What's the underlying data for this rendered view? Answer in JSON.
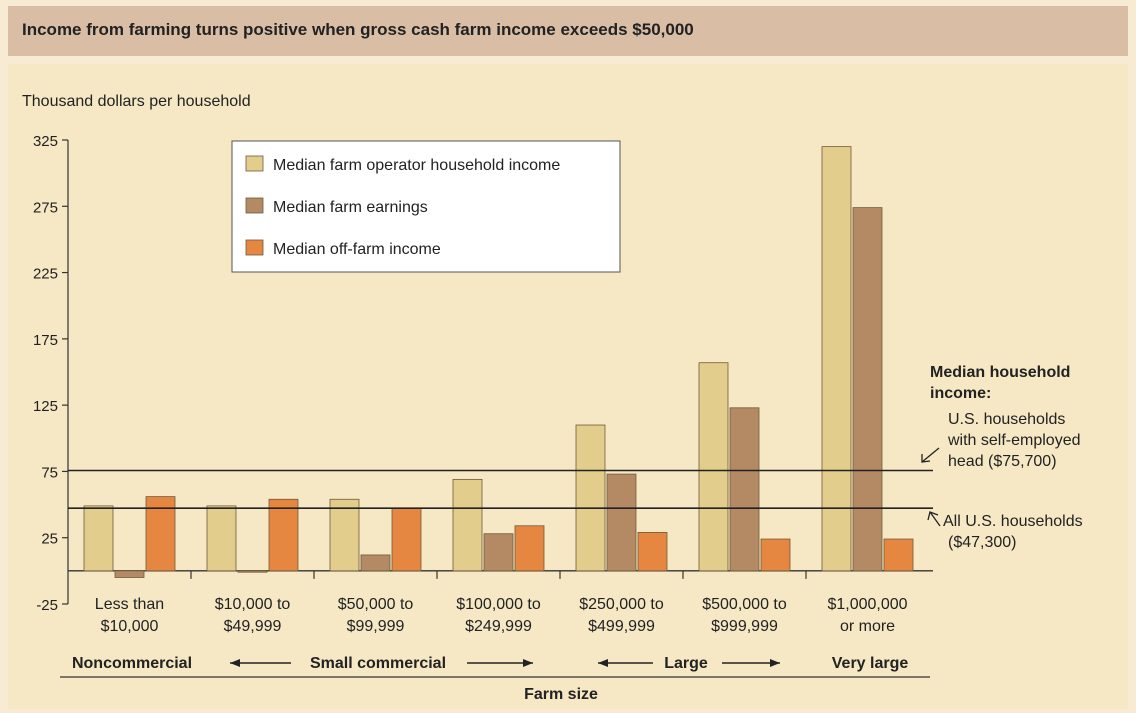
{
  "header": {
    "title": "Income from farming turns positive when gross cash farm income exceeds $50,000"
  },
  "colors": {
    "page_bg": "#f7ecd3",
    "header_band": "#d9bea5",
    "chart_bg": "#f6e8c4",
    "operator_income": "#e3cd8d",
    "farm_earnings": "#b48a64",
    "off_farm_income": "#e58741",
    "bar_stroke": "#6e5a3a"
  },
  "chart_data": {
    "type": "bar",
    "title": "Income from farming turns positive when gross cash farm income exceeds $50,000",
    "ylabel": "Thousand dollars per household",
    "xlabel": "Farm size",
    "ylim": [
      -25,
      325
    ],
    "yticks": [
      -25,
      25,
      75,
      125,
      175,
      225,
      275,
      325
    ],
    "categories": [
      [
        "Less than",
        "$10,000"
      ],
      [
        "$10,000 to",
        "$49,999"
      ],
      [
        "$50,000 to",
        "$99,999"
      ],
      [
        "$100,000 to",
        "$249,999"
      ],
      [
        "$250,000 to",
        "$499,999"
      ],
      [
        "$500,000 to",
        "$999,999"
      ],
      [
        "$1,000,000",
        "or more"
      ]
    ],
    "series": [
      {
        "name": "Median farm operator household income",
        "color": "#e3cd8d",
        "values": [
          49,
          49,
          54,
          69,
          110,
          157,
          320
        ]
      },
      {
        "name": "Median farm earnings",
        "color": "#b48a64",
        "values": [
          -5,
          -1,
          12,
          28,
          73,
          123,
          274
        ]
      },
      {
        "name": "Median off-farm income",
        "color": "#e58741",
        "values": [
          56,
          54,
          47,
          34,
          29,
          24,
          24
        ]
      }
    ],
    "reference_lines": [
      {
        "value": 75.7,
        "label": [
          "U.S. households",
          "with self-employed",
          "head ($75,700)"
        ]
      },
      {
        "value": 47.3,
        "label": [
          "All U.S. households",
          "($47,300)"
        ]
      }
    ],
    "reference_heading": [
      "Median household",
      "income:"
    ],
    "groups": [
      {
        "label": "Noncommercial",
        "arrows": false
      },
      {
        "label": "Small commercial",
        "arrows": true
      },
      {
        "label": "Large",
        "arrows": true
      },
      {
        "label": "Very large",
        "arrows": false
      }
    ],
    "legend": "top-left",
    "grid": false
  }
}
